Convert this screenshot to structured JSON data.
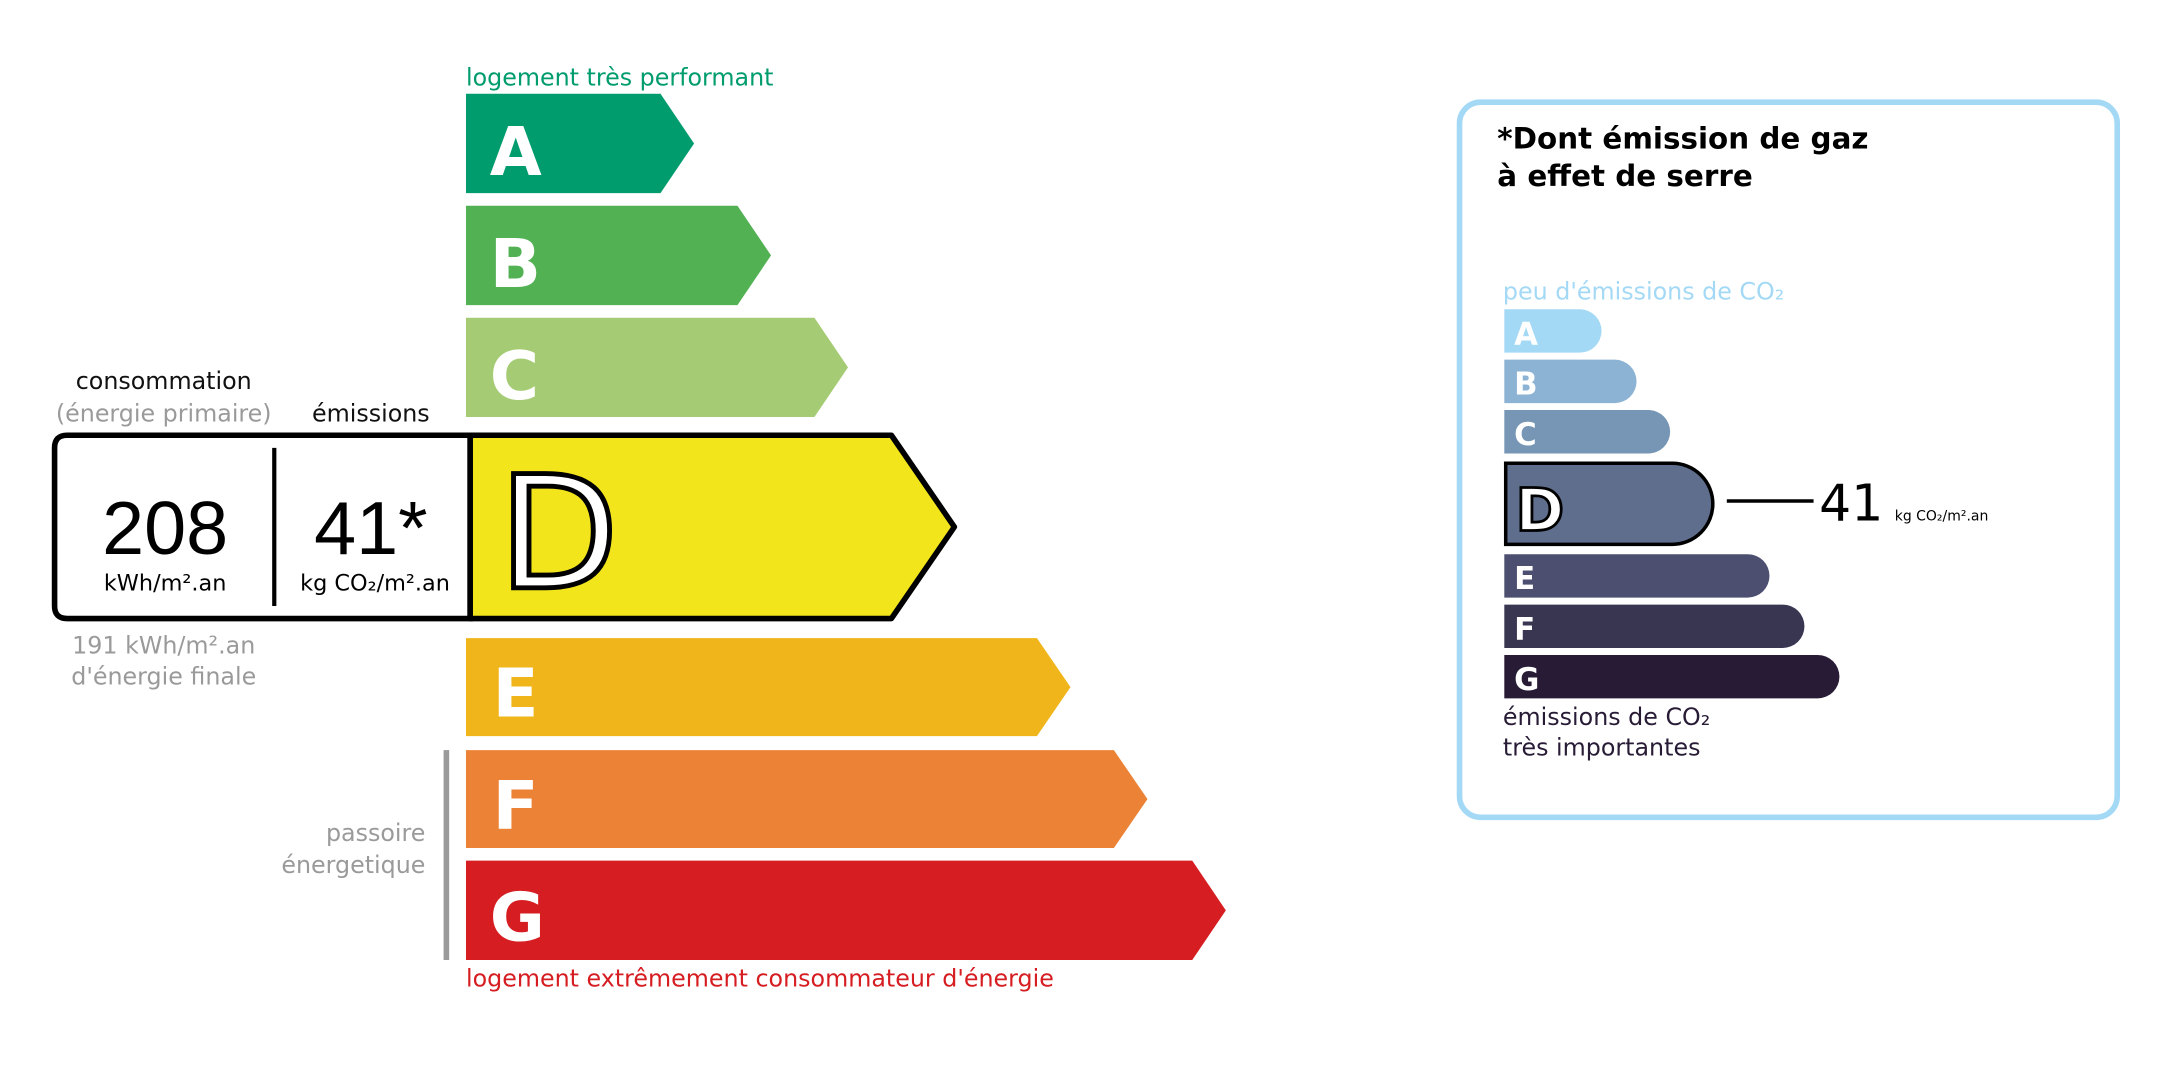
{
  "energy": {
    "top_label": "logement très performant",
    "bottom_label": "logement extrêmement consommateur d'énergie",
    "passoire_line1": "passoire",
    "passoire_line2": "énergetique",
    "classes": [
      {
        "letter": "A",
        "color": "#009c6d"
      },
      {
        "letter": "B",
        "color": "#52b153"
      },
      {
        "letter": "C",
        "color": "#a5cc74"
      },
      {
        "letter": "D",
        "color": "#f2e51c"
      },
      {
        "letter": "E",
        "color": "#f0b51a"
      },
      {
        "letter": "F",
        "color": "#eb8235"
      },
      {
        "letter": "G",
        "color": "#d61d21"
      }
    ],
    "current_class": "D",
    "consumption_label": "consommation",
    "consumption_sub": "(énergie primaire)",
    "emissions_label": "émissions",
    "consumption_value": "208",
    "consumption_unit": "kWh/m².an",
    "emissions_value": "41*",
    "emissions_unit": "kg CO₂/m².an",
    "final_energy_line1": "191 kWh/m².an",
    "final_energy_line2": "d'énergie finale"
  },
  "ghg": {
    "title_line1": "*Dont émission de gaz",
    "title_line2": "à effet de serre",
    "top_label": "peu d'émissions de CO₂",
    "bottom_line1": "émissions de CO₂",
    "bottom_line2": "très importantes",
    "classes": [
      {
        "letter": "A",
        "color": "#a4d9f6"
      },
      {
        "letter": "B",
        "color": "#8db3d4"
      },
      {
        "letter": "C",
        "color": "#7796b5"
      },
      {
        "letter": "D",
        "color": "#5f6e8d"
      },
      {
        "letter": "E",
        "color": "#4c4f6f"
      },
      {
        "letter": "F",
        "color": "#393651"
      },
      {
        "letter": "G",
        "color": "#281b35"
      }
    ],
    "current_class": "D",
    "value": "41",
    "unit": "kg CO₂/m².an",
    "border_color": "#a4d9f6"
  }
}
